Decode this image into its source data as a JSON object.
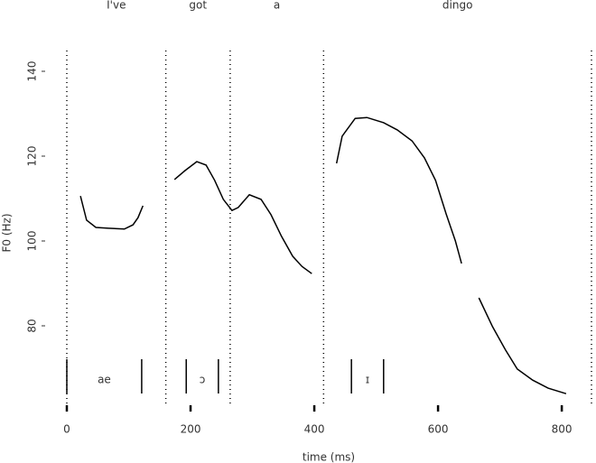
{
  "chart_data": {
    "type": "line",
    "x_label": "time (ms)",
    "y_label": "F0 (Hz)",
    "x": [
      22,
      32,
      47,
      67,
      93,
      107,
      115,
      123,
      null,
      174,
      191,
      210,
      225,
      239,
      253,
      267,
      277,
      295,
      314,
      330,
      347,
      365,
      380,
      396,
      null,
      436,
      445,
      466,
      485,
      512,
      534,
      558,
      578,
      596,
      613,
      628,
      638,
      null,
      666,
      688,
      709,
      728,
      753,
      778,
      807
    ],
    "values": [
      110.6,
      104.9,
      103.2,
      103,
      102.8,
      103.8,
      105.5,
      108.3,
      null,
      114.5,
      116.6,
      118.7,
      117.9,
      114.3,
      109.8,
      107.2,
      107.9,
      110.9,
      109.8,
      106.2,
      101.1,
      96.4,
      94,
      92.3,
      null,
      118.3,
      124.7,
      128.9,
      129.1,
      127.9,
      126.2,
      123.6,
      119.6,
      114.3,
      106.4,
      100,
      94.7,
      null,
      86.6,
      79.8,
      74.3,
      69.8,
      67.2,
      65.3,
      64
    ],
    "color": "#000000",
    "xlim": [
      0,
      848
    ],
    "xticks": [
      0,
      200,
      400,
      600,
      800
    ],
    "ylim": [
      61,
      145
    ],
    "yticks": [
      80,
      100,
      120,
      140
    ],
    "words": [
      "I've",
      "got",
      "a",
      "dingo"
    ],
    "word_boundaries": [
      0,
      160,
      264,
      415,
      848
    ],
    "segments": [
      {
        "label": "ae",
        "start": 0,
        "end": 121
      },
      {
        "label": "ɔ",
        "start": 193,
        "end": 245
      },
      {
        "label": "ɪ",
        "start": 460,
        "end": 512
      }
    ]
  }
}
